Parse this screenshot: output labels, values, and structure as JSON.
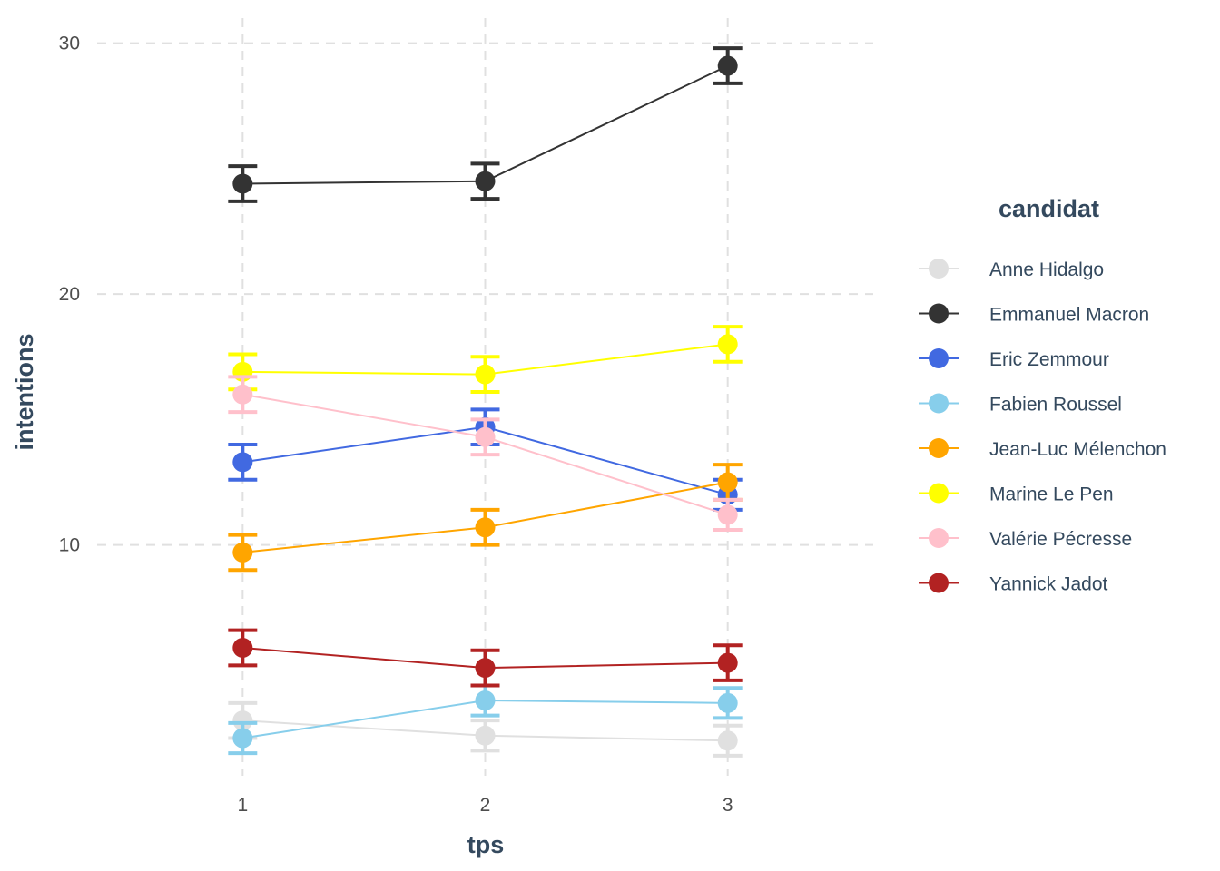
{
  "chart_data": {
    "type": "line",
    "xlabel": "tps",
    "ylabel": "intentions",
    "x": [
      1,
      2,
      3
    ],
    "xlim": [
      0.4,
      3.6
    ],
    "ylim": [
      0.8,
      31
    ],
    "yticks": [
      10,
      20,
      30
    ],
    "grid": true,
    "error_bars": true,
    "legend": {
      "title": "candidat",
      "position": "right"
    },
    "series": [
      {
        "name": "Anne Hidalgo",
        "color": "#e0e0e0",
        "values": [
          3.0,
          2.4,
          2.2
        ],
        "err": [
          0.7,
          0.6,
          0.6
        ]
      },
      {
        "name": "Emmanuel Macron",
        "color": "#333333",
        "values": [
          24.4,
          24.5,
          29.1
        ],
        "err": [
          0.7,
          0.7,
          0.7
        ]
      },
      {
        "name": "Eric Zemmour",
        "color": "#4169e1",
        "values": [
          13.3,
          14.7,
          12.0
        ],
        "err": [
          0.7,
          0.7,
          0.6
        ]
      },
      {
        "name": "Fabien Roussel",
        "color": "#87ceeb",
        "values": [
          2.3,
          3.8,
          3.7
        ],
        "err": [
          0.6,
          0.6,
          0.6
        ]
      },
      {
        "name": "Jean-Luc Mélenchon",
        "color": "#ffa500",
        "values": [
          9.7,
          10.7,
          12.5
        ],
        "err": [
          0.7,
          0.7,
          0.7
        ]
      },
      {
        "name": "Marine Le Pen",
        "color": "#ffff00",
        "values": [
          16.9,
          16.8,
          18.0
        ],
        "err": [
          0.7,
          0.7,
          0.7
        ]
      },
      {
        "name": "Valérie Pécresse",
        "color": "#ffc0cb",
        "values": [
          16.0,
          14.3,
          11.2
        ],
        "err": [
          0.7,
          0.7,
          0.6
        ]
      },
      {
        "name": "Yannick Jadot",
        "color": "#b22222",
        "values": [
          5.9,
          5.1,
          5.3
        ],
        "err": [
          0.7,
          0.7,
          0.7
        ]
      }
    ]
  }
}
